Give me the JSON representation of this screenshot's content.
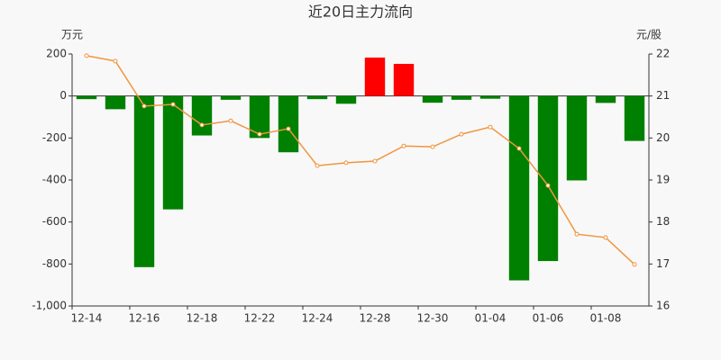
{
  "chart_data": {
    "type": "bar-line",
    "title": "近20日主力流向",
    "y_label": "万元",
    "y2_label": "元/股",
    "categories": [
      "12-14",
      null,
      "12-16",
      null,
      "12-18",
      null,
      "12-22",
      null,
      "12-24",
      null,
      "12-28",
      null,
      "12-30",
      null,
      "01-04",
      null,
      "01-06",
      null,
      "01-08",
      null
    ],
    "series": [
      {
        "type": "bar",
        "positive_color": "#ff0000",
        "negative_color": "#008000",
        "values": [
          -15,
          -63,
          -815,
          -540,
          -188,
          -18,
          -200,
          -268,
          -15,
          -37,
          183,
          153,
          -32,
          -18,
          -13,
          -878,
          -786,
          -402,
          -33,
          -214
        ]
      },
      {
        "type": "line",
        "axis": "y2",
        "color": "#f0953f",
        "values": [
          21.96,
          21.83,
          20.76,
          20.8,
          20.31,
          20.41,
          20.09,
          20.22,
          19.34,
          19.41,
          19.45,
          19.81,
          19.79,
          20.09,
          20.26,
          19.75,
          18.87,
          17.71,
          17.63,
          16.99
        ]
      }
    ],
    "ylim": [
      -1000,
      200
    ],
    "yticks": [
      200,
      0,
      -200,
      -400,
      -600,
      -800,
      {
        "value": -1000,
        "label": "-1,000"
      }
    ],
    "y2lim": [
      16,
      22
    ],
    "y2ticks": [
      22,
      21,
      20,
      19,
      18,
      17,
      16
    ]
  }
}
